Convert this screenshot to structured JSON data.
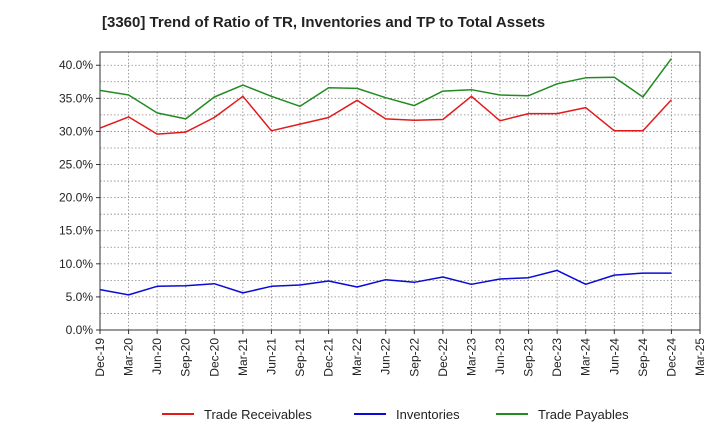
{
  "chart_data": {
    "type": "line",
    "title": "[3360]  Trend of Ratio of TR, Inventories and TP to Total Assets",
    "xlabel": "",
    "ylabel": "",
    "x_ticks": [
      "Dec-19",
      "Mar-20",
      "Jun-20",
      "Sep-20",
      "Dec-20",
      "Mar-21",
      "Jun-21",
      "Sep-21",
      "Dec-21",
      "Mar-22",
      "Jun-22",
      "Sep-22",
      "Dec-22",
      "Mar-23",
      "Jun-23",
      "Sep-23",
      "Dec-23",
      "Mar-24",
      "Jun-24",
      "Sep-24",
      "Dec-24",
      "Mar-25"
    ],
    "categories": [
      "Dec-19",
      "Mar-20",
      "Jun-20",
      "Sep-20",
      "Dec-20",
      "Mar-21",
      "Jun-21",
      "Sep-21",
      "Dec-21",
      "Mar-22",
      "Jun-22",
      "Sep-22",
      "Dec-22",
      "Mar-23",
      "Jun-23",
      "Sep-23",
      "Dec-23",
      "Mar-24",
      "Jun-24",
      "Sep-24",
      "Dec-24"
    ],
    "y_ticks": [
      "0.0%",
      "5.0%",
      "10.0%",
      "15.0%",
      "20.0%",
      "25.0%",
      "30.0%",
      "35.0%",
      "40.0%"
    ],
    "ylim": [
      0,
      42
    ],
    "grid": true,
    "legend_position": "bottom",
    "series": [
      {
        "name": "Trade Receivables",
        "color": "#e31a1c",
        "values": [
          30.5,
          32.2,
          29.6,
          29.9,
          32.1,
          35.3,
          30.1,
          31.1,
          32.1,
          34.7,
          31.9,
          31.7,
          31.8,
          35.3,
          31.6,
          32.7,
          32.7,
          33.6,
          30.1,
          30.1,
          34.8
        ]
      },
      {
        "name": "Inventories",
        "color": "#0a0ad6",
        "values": [
          6.1,
          5.3,
          6.6,
          6.7,
          7.0,
          5.6,
          6.6,
          6.8,
          7.4,
          6.5,
          7.6,
          7.2,
          8.0,
          6.9,
          7.7,
          7.9,
          9.0,
          6.9,
          8.3,
          8.6,
          8.6
        ]
      },
      {
        "name": "Trade Payables",
        "color": "#228b22",
        "values": [
          36.2,
          35.5,
          32.8,
          31.9,
          35.2,
          37.0,
          35.3,
          33.8,
          36.6,
          36.5,
          35.1,
          33.9,
          36.1,
          36.3,
          35.5,
          35.4,
          37.2,
          38.1,
          38.2,
          35.2,
          41.0
        ]
      }
    ]
  }
}
